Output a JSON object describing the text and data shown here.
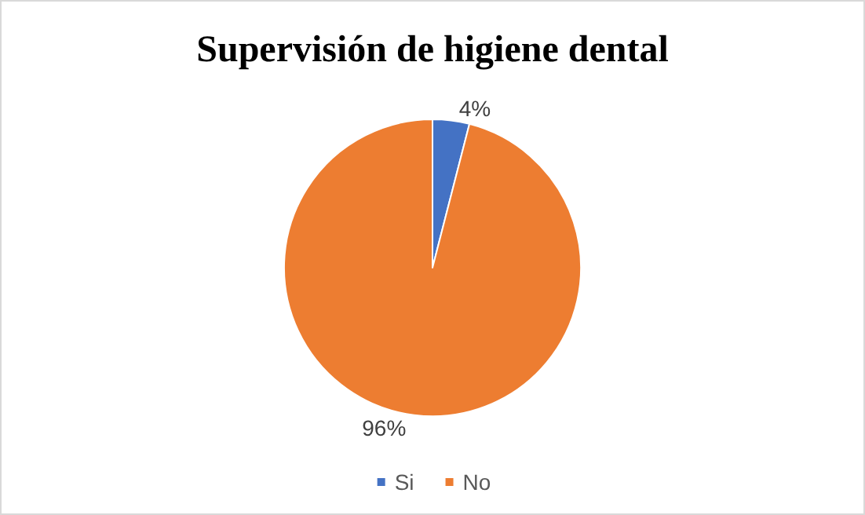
{
  "chart_data": {
    "type": "pie",
    "title": "Supervisión de higiene dental",
    "categories": [
      "Si",
      "No"
    ],
    "values": [
      4,
      96
    ],
    "colors": [
      "#4472c4",
      "#ed7d31"
    ],
    "value_labels": [
      "4%",
      "96%"
    ],
    "legend": "bottom"
  }
}
